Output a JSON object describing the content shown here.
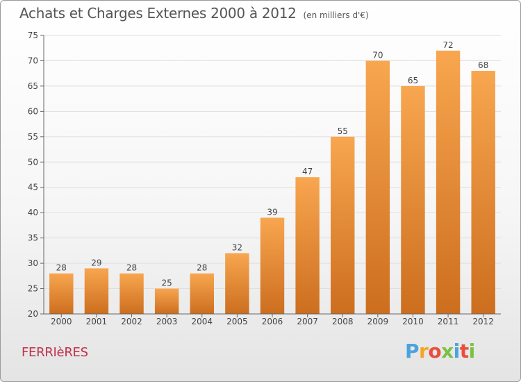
{
  "title": "Achats et Charges Externes 2000 à 2012",
  "unit": "(en milliers d'€)",
  "commune": "FERRIèRES",
  "brand": {
    "letters": [
      "P",
      "r",
      "o",
      "x",
      "i",
      "t",
      "i"
    ],
    "colors": [
      "#4aa3df",
      "#f5a623",
      "#e94e3c",
      "#7cc142",
      "#4aa3df",
      "#e94e3c",
      "#7cc142"
    ]
  },
  "colors": {
    "bar_light": "#f8a650",
    "bar_dark": "#cc6e1e",
    "grid": "#dedede",
    "axis": "#666666"
  },
  "chart_data": {
    "type": "bar",
    "categories": [
      "2000",
      "2001",
      "2002",
      "2003",
      "2004",
      "2005",
      "2006",
      "2007",
      "2008",
      "2009",
      "2010",
      "2011",
      "2012"
    ],
    "values": [
      28,
      29,
      28,
      25,
      28,
      32,
      39,
      47,
      55,
      70,
      65,
      72,
      68
    ],
    "ylim": [
      20,
      75
    ],
    "yticks": [
      20,
      25,
      30,
      35,
      40,
      45,
      50,
      55,
      60,
      65,
      70,
      75
    ],
    "grid": true
  }
}
